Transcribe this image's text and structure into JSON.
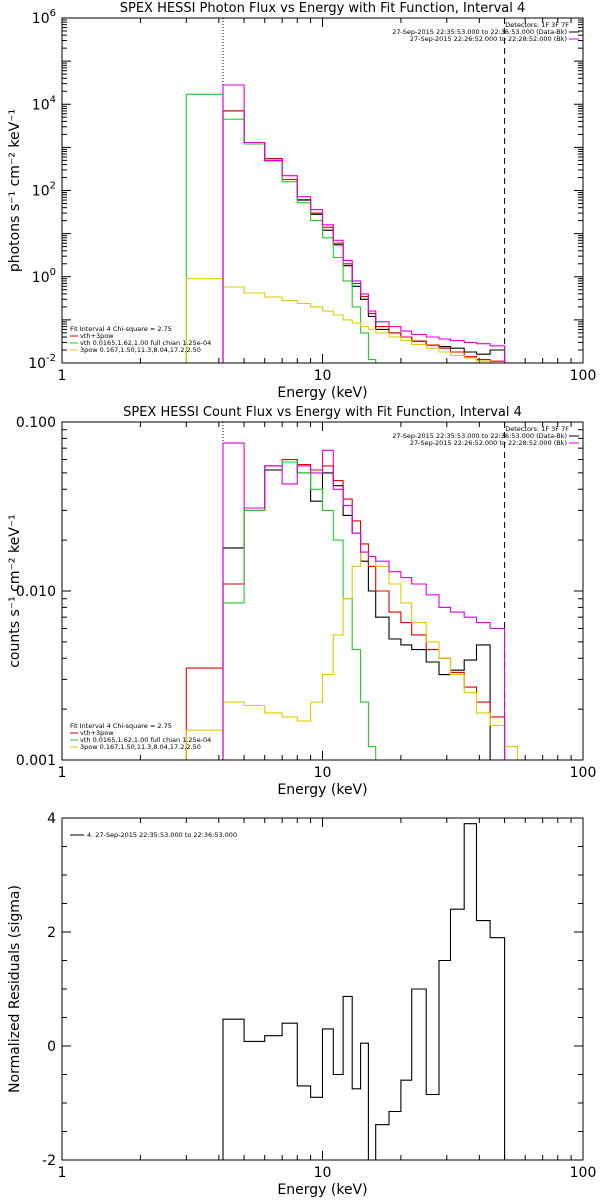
{
  "colors": {
    "black": "#000000",
    "red": "#dd0000",
    "green": "#22cc22",
    "yellow": "#ddcc00",
    "magenta": "#dd00dd"
  },
  "chart_data": [
    {
      "type": "line",
      "title": "SPEX HESSI Photon Flux vs Energy with Fit Function, Interval 4",
      "xlabel": "Energy (keV)",
      "ylabel": "photons s⁻¹ cm⁻² keV⁻¹",
      "xscale": "log",
      "yscale": "log",
      "xlim": [
        1,
        100
      ],
      "ylim": [
        0.01,
        1000000
      ],
      "xticks": [
        {
          "value": 1,
          "label": "1"
        },
        {
          "value": 10,
          "label": "10"
        },
        {
          "value": 100,
          "label": "100"
        }
      ],
      "yticks": [
        {
          "value": 0.01,
          "base": "10",
          "exp": "-2"
        },
        {
          "value": 1,
          "base": "10",
          "exp": "0"
        },
        {
          "value": 100,
          "base": "10",
          "exp": "2"
        },
        {
          "value": 10000,
          "base": "10",
          "exp": "4"
        },
        {
          "value": 1000000,
          "base": "10",
          "exp": "6"
        }
      ],
      "legend_top": {
        "header": "Detectors: 1F 3F 7F",
        "lines": [
          {
            "text": "27-Sep-2015 22:35:53.000 to 22:36:53.000 (Data-Bk)",
            "color": "#000000"
          },
          {
            "text": "27-Sep-2015 22:26:52.000 to 22:28:52.000 (Bk)",
            "color": "#dd00dd"
          }
        ]
      },
      "legend_bottom": {
        "header": "Fit Interval 4   Chi-square = 2.75",
        "lines": [
          {
            "text": "vth+3pow",
            "color": "#dd0000"
          },
          {
            "text": "vth 0.0165,1.62,1.00  full chian 1.25e-04",
            "color": "#22cc22"
          },
          {
            "text": "3pow 0.167,1.50,11.3,8.04,17.2,2.50",
            "color": "#ddcc00"
          }
        ]
      },
      "vlines": [
        {
          "x": 4.15,
          "style": "dotted"
        },
        {
          "x": 50,
          "style": "dashed"
        }
      ],
      "edges": [
        3.0,
        4.15,
        5,
        6,
        7,
        8,
        9,
        10,
        11,
        12,
        13,
        14,
        15,
        16,
        18,
        20,
        22,
        25,
        28,
        31,
        35,
        39,
        44,
        50
      ],
      "series": [
        {
          "color": "#000000",
          "start": 1,
          "values": [
            7000,
            1300,
            550,
            180,
            60,
            28,
            12,
            5.5,
            1.8,
            0.6,
            0.3,
            0.12,
            0.06,
            0.05,
            0.04,
            0.032,
            0.026,
            0.024,
            0.022,
            0.018,
            0.016,
            0.02
          ]
        },
        {
          "color": "#dd0000",
          "start": 1,
          "values": [
            7000,
            1300,
            550,
            180,
            62,
            30,
            14,
            6,
            2,
            0.7,
            0.35,
            0.14,
            0.07,
            0.05,
            0.04,
            0.032,
            0.026,
            0.022,
            0.018,
            0.014,
            0.012,
            0.011
          ]
        },
        {
          "color": "#22cc22",
          "start": 0,
          "values": [
            17000,
            4500,
            1200,
            480,
            160,
            52,
            20,
            8,
            2.8,
            0.8,
            0.2,
            0.05,
            0.012,
            0.006
          ]
        },
        {
          "color": "#ddcc00",
          "start": 0,
          "values": [
            0.9,
            0.58,
            0.42,
            0.34,
            0.28,
            0.24,
            0.2,
            0.16,
            0.13,
            0.1,
            0.085,
            0.07,
            0.06,
            0.05,
            0.04,
            0.033,
            0.027,
            0.022,
            0.018,
            0.015,
            0.013,
            0.011,
            0.01
          ]
        },
        {
          "color": "#dd00dd",
          "start": 1,
          "values": [
            28000,
            1300,
            500,
            220,
            72,
            36,
            16,
            7,
            2.4,
            0.8,
            0.4,
            0.16,
            0.09,
            0.07,
            0.055,
            0.046,
            0.04,
            0.036,
            0.033,
            0.03,
            0.028,
            0.025
          ]
        }
      ]
    },
    {
      "type": "line",
      "title": "SPEX HESSI Count Flux vs Energy with Fit Function, Interval 4",
      "xlabel": "Energy (keV)",
      "ylabel": "counts s⁻¹ cm⁻² keV⁻¹",
      "xscale": "log",
      "yscale": "log",
      "xlim": [
        1,
        100
      ],
      "ylim": [
        0.001,
        0.1
      ],
      "xticks": [
        {
          "value": 1,
          "label": "1"
        },
        {
          "value": 10,
          "label": "10"
        },
        {
          "value": 100,
          "label": "100"
        }
      ],
      "yticks": [
        {
          "value": 0.001,
          "label": "0.001"
        },
        {
          "value": 0.01,
          "label": "0.010"
        },
        {
          "value": 0.1,
          "label": "0.100"
        }
      ],
      "legend_top": {
        "header": "Detectors: 1F 3F 7F",
        "lines": [
          {
            "text": "27-Sep-2015 22:35:53.000 to 22:36:53.000 (Data-Bk)",
            "color": "#000000"
          },
          {
            "text": "27-Sep-2015 22:26:52.000 to 22:28:52.000 (Bk)",
            "color": "#dd00dd"
          }
        ]
      },
      "legend_bottom": {
        "header": "Fit Interval 4   Chi-square = 2.75",
        "lines": [
          {
            "text": "vth+3pow",
            "color": "#dd0000"
          },
          {
            "text": "vth 0.0165,1.62,1.00  full chian 1.25e-04",
            "color": "#22cc22"
          },
          {
            "text": "3pow 0.167,1.50,11.3,8.04,17.2,2.50",
            "color": "#ddcc00"
          }
        ]
      },
      "vlines": [
        {
          "x": 4.15,
          "style": "dotted"
        },
        {
          "x": 50,
          "style": "dashed"
        }
      ],
      "edges": [
        3.0,
        4.15,
        5,
        6,
        7,
        8,
        9,
        10,
        11,
        12,
        13,
        14,
        15,
        16,
        18,
        20,
        22,
        25,
        28,
        31,
        35,
        39,
        44,
        50,
        56,
        62
      ],
      "series": [
        {
          "color": "#000000",
          "start": 1,
          "values": [
            0.018,
            0.03,
            0.052,
            0.058,
            0.05,
            0.034,
            0.05,
            0.042,
            0.028,
            0.022,
            0.015,
            0.01,
            0.007,
            0.0052,
            0.0048,
            0.0045,
            0.0038,
            0.0032,
            0.0034,
            0.0039,
            0.0048
          ]
        },
        {
          "color": "#dd0000",
          "start": 0,
          "values": [
            0.0035,
            0.011,
            0.031,
            0.055,
            0.06,
            0.056,
            0.052,
            0.055,
            0.045,
            0.035,
            0.026,
            0.019,
            0.014,
            0.01,
            0.0075,
            0.0065,
            0.0055,
            0.0045,
            0.004,
            0.0033,
            0.0027,
            0.0022,
            0.0018
          ]
        },
        {
          "color": "#22cc22",
          "start": 1,
          "values": [
            0.0085,
            0.03,
            0.055,
            0.058,
            0.05,
            0.04,
            0.03,
            0.02,
            0.009,
            0.0045,
            0.0022,
            0.0012,
            0.001
          ]
        },
        {
          "color": "#ddcc00",
          "start": 0,
          "values": [
            0.0015,
            0.0022,
            0.0021,
            0.0019,
            0.0018,
            0.0017,
            0.0022,
            0.0032,
            0.0055,
            0.009,
            0.014,
            0.017,
            0.016,
            0.014,
            0.011,
            0.0085,
            0.0065,
            0.005,
            0.004,
            0.0032,
            0.0025,
            0.0019,
            0.0016,
            0.0012,
            0.001
          ]
        },
        {
          "color": "#dd00dd",
          "start": 1,
          "values": [
            0.075,
            0.031,
            0.055,
            0.043,
            0.055,
            0.05,
            0.068,
            0.04,
            0.032,
            0.022,
            0.017,
            0.016,
            0.015,
            0.013,
            0.012,
            0.011,
            0.0095,
            0.008,
            0.0075,
            0.007,
            0.0065,
            0.006
          ]
        }
      ]
    },
    {
      "type": "line",
      "title": "",
      "xlabel": "Energy (keV)",
      "ylabel": "Normalized Residuals (sigma)",
      "xscale": "log",
      "yscale": "linear",
      "xlim": [
        1,
        100
      ],
      "ylim": [
        -2,
        4
      ],
      "xticks": [
        {
          "value": 1,
          "label": "1"
        },
        {
          "value": 10,
          "label": "10"
        },
        {
          "value": 100,
          "label": "100"
        }
      ],
      "yticks": [
        {
          "value": -2,
          "label": "-2"
        },
        {
          "value": 0,
          "label": "0"
        },
        {
          "value": 2,
          "label": "2"
        },
        {
          "value": 4,
          "label": "4"
        }
      ],
      "legend_top_left": {
        "text": "4. 27-Sep-2015 22:35:53.000 to 22:36:53.000",
        "color": "#000000"
      },
      "edges": [
        4.15,
        5,
        6,
        7,
        8,
        9,
        10,
        11,
        12,
        13,
        14,
        15,
        16,
        18,
        20,
        22,
        25,
        28,
        31,
        35,
        39,
        44,
        50
      ],
      "series": [
        {
          "color": "#000000",
          "start": 0,
          "values": [
            0.47,
            0.08,
            0.18,
            0.4,
            -0.7,
            -0.9,
            0.3,
            -0.5,
            0.87,
            -0.75,
            0.05,
            -2.0,
            -1.38,
            -1.15,
            -0.6,
            1.0,
            -0.85,
            1.5,
            2.4,
            3.9,
            2.2,
            1.9
          ]
        }
      ]
    }
  ]
}
